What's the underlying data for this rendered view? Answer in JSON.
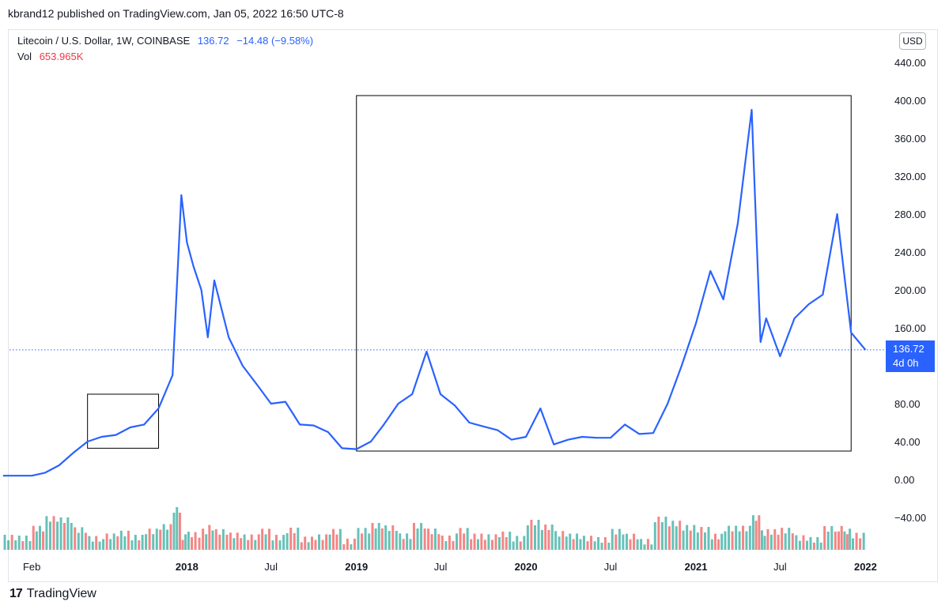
{
  "header": {
    "publisher_line": "kbrand12 published on TradingView.com, Jan 05, 2022 16:50 UTC-8"
  },
  "legend": {
    "symbol": "Litecoin / U.S. Dollar, 1W, COINBASE",
    "last": "136.72",
    "change": "−14.48 (−9.58%)",
    "vol_label": "Vol",
    "vol_value": "653.965K"
  },
  "currency_button": "USD",
  "price_tag": {
    "price": "136.72",
    "countdown": "4d 0h"
  },
  "brand": {
    "logo_glyph": "17",
    "name": "TradingView"
  },
  "colors": {
    "line": "#2962ff",
    "vol_up": "#26a69a",
    "vol_down": "#ef5350",
    "box": "#000000"
  },
  "chart_data": {
    "type": "line",
    "title": "Litecoin / U.S. Dollar, 1W, COINBASE",
    "ylim": [
      -40,
      440
    ],
    "y_ticks": [
      "440.00",
      "400.00",
      "360.00",
      "320.00",
      "280.00",
      "240.00",
      "200.00",
      "160.00",
      "120.00",
      "80.00",
      "40.00",
      "0.00",
      "−40.00"
    ],
    "x_ticks": [
      {
        "label": "Feb",
        "date": "2017-02",
        "bold": false
      },
      {
        "label": "2018",
        "date": "2018-01",
        "bold": true
      },
      {
        "label": "Jul",
        "date": "2018-07",
        "bold": false
      },
      {
        "label": "2019",
        "date": "2019-01",
        "bold": true
      },
      {
        "label": "Jul",
        "date": "2019-07",
        "bold": false
      },
      {
        "label": "2020",
        "date": "2020-01",
        "bold": true
      },
      {
        "label": "Jul",
        "date": "2020-07",
        "bold": false
      },
      {
        "label": "2021",
        "date": "2021-01",
        "bold": true
      },
      {
        "label": "Jul",
        "date": "2021-07",
        "bold": false
      },
      {
        "label": "2022",
        "date": "2022-01",
        "bold": true
      }
    ],
    "last_price": 136.72,
    "series": [
      {
        "name": "Litecoin / U.S. Dollar",
        "points": [
          [
            "2016-12",
            4
          ],
          [
            "2017-01",
            4
          ],
          [
            "2017-02",
            4
          ],
          [
            "2017-03",
            7
          ],
          [
            "2017-04",
            15
          ],
          [
            "2017-05",
            28
          ],
          [
            "2017-06",
            40
          ],
          [
            "2017-07",
            45
          ],
          [
            "2017-08",
            47
          ],
          [
            "2017-09",
            55
          ],
          [
            "2017-10",
            58
          ],
          [
            "2017-11",
            75
          ],
          [
            "2017-12",
            110
          ],
          [
            "2017-12-20",
            300
          ],
          [
            "2018-01",
            250
          ],
          [
            "2018-01-15",
            225
          ],
          [
            "2018-02",
            200
          ],
          [
            "2018-02-15",
            150
          ],
          [
            "2018-03",
            210
          ],
          [
            "2018-04",
            150
          ],
          [
            "2018-05",
            120
          ],
          [
            "2018-06",
            100
          ],
          [
            "2018-07",
            80
          ],
          [
            "2018-08",
            82
          ],
          [
            "2018-09",
            58
          ],
          [
            "2018-10",
            57
          ],
          [
            "2018-11",
            50
          ],
          [
            "2018-12",
            33
          ],
          [
            "2019-01",
            32
          ],
          [
            "2019-02",
            40
          ],
          [
            "2019-03",
            58
          ],
          [
            "2019-04",
            80
          ],
          [
            "2019-05",
            90
          ],
          [
            "2019-06",
            135
          ],
          [
            "2019-07",
            90
          ],
          [
            "2019-08",
            78
          ],
          [
            "2019-09",
            60
          ],
          [
            "2019-10",
            56
          ],
          [
            "2019-11",
            52
          ],
          [
            "2019-12",
            42
          ],
          [
            "2020-01",
            45
          ],
          [
            "2020-02",
            75
          ],
          [
            "2020-03",
            37
          ],
          [
            "2020-04",
            42
          ],
          [
            "2020-05",
            45
          ],
          [
            "2020-06",
            44
          ],
          [
            "2020-07",
            44
          ],
          [
            "2020-08",
            58
          ],
          [
            "2020-09",
            48
          ],
          [
            "2020-10",
            49
          ],
          [
            "2020-11",
            80
          ],
          [
            "2020-12",
            120
          ],
          [
            "2021-01",
            165
          ],
          [
            "2021-02",
            220
          ],
          [
            "2021-03",
            190
          ],
          [
            "2021-04",
            270
          ],
          [
            "2021-05",
            390
          ],
          [
            "2021-05-20",
            145
          ],
          [
            "2021-06",
            170
          ],
          [
            "2021-07",
            130
          ],
          [
            "2021-08",
            170
          ],
          [
            "2021-09",
            185
          ],
          [
            "2021-10",
            195
          ],
          [
            "2021-11",
            280
          ],
          [
            "2021-11-20",
            200
          ],
          [
            "2021-12",
            155
          ],
          [
            "2022-01",
            136.72
          ]
        ]
      }
    ],
    "volume_series": {
      "name": "Vol",
      "last": "653.965K"
    },
    "annotations": [
      {
        "type": "rectangle",
        "from": [
          "2017-06",
          33
        ],
        "to": [
          "2017-11",
          90
        ]
      },
      {
        "type": "rectangle",
        "from": [
          "2019-01",
          30
        ],
        "to": [
          "2021-12",
          405
        ]
      }
    ]
  }
}
